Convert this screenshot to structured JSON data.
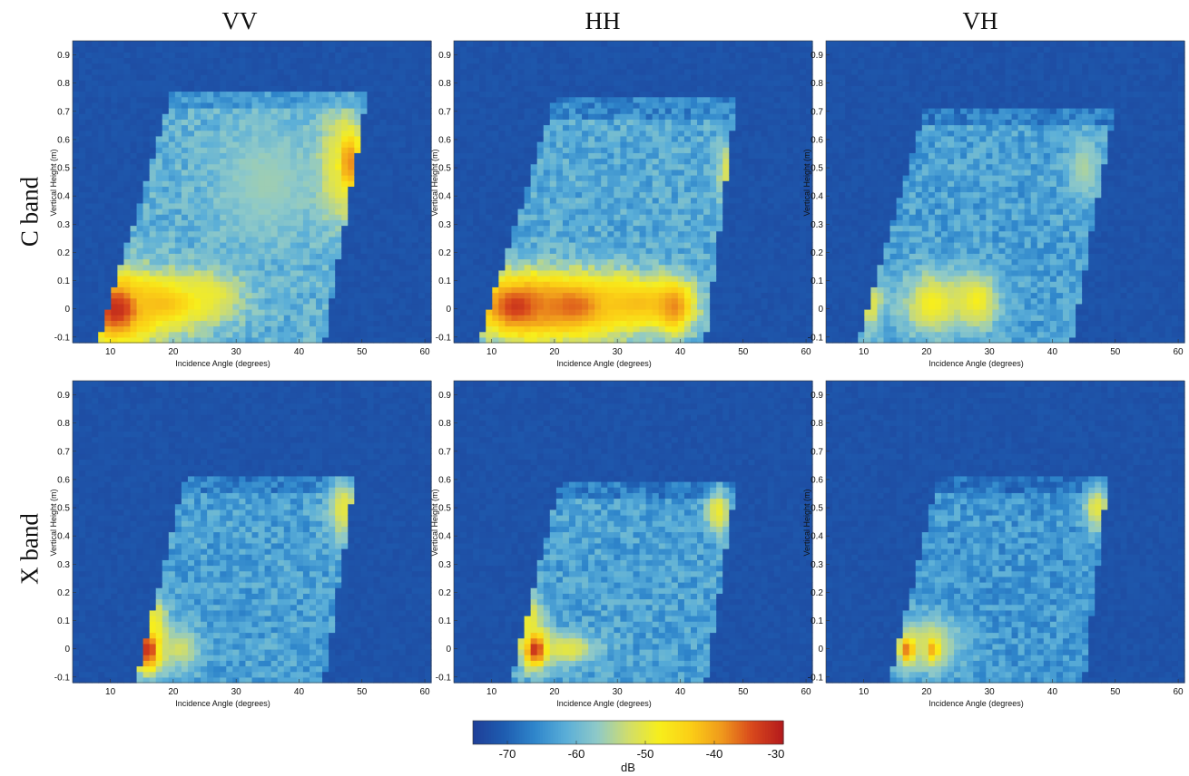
{
  "column_titles": [
    "VV",
    "HH",
    "VH"
  ],
  "row_titles": [
    "C band",
    "X band"
  ],
  "colormap": [
    "#1f3f98",
    "#1e5cb0",
    "#2f86cb",
    "#5aaed8",
    "#8ec9c8",
    "#d0dd6c",
    "#f7ee1c",
    "#fbcf16",
    "#f09a1c",
    "#d8481c",
    "#b3191c"
  ],
  "chart_data": [
    {
      "type": "heatmap",
      "band": "C band",
      "polarization": "VV",
      "xlabel": "Incidence Angle (degrees)",
      "ylabel": "Vertical Height (m)",
      "xlim": [
        4,
        61
      ],
      "ylim": [
        -0.12,
        0.95
      ],
      "xticks": [
        10,
        20,
        30,
        40,
        50,
        60
      ],
      "yticks": [
        -0.1,
        0,
        0.1,
        0.2,
        0.3,
        0.4,
        0.5,
        0.6,
        0.7,
        0.8,
        0.9
      ],
      "colorbar_units": "dB",
      "clim": [
        -75,
        -30
      ],
      "footprint": {
        "x_left_bottom": 8,
        "x_right_bottom": 44,
        "x_left_top": 20,
        "x_right_top": 51,
        "top_height": 0.78,
        "background_db": -72,
        "fill_db": -61
      },
      "hotspots": [
        {
          "x": 11,
          "y": 0.0,
          "sx": 4,
          "sy": 0.09,
          "db": -32
        },
        {
          "x": 18,
          "y": 0.02,
          "sx": 6,
          "sy": 0.07,
          "db": -42
        },
        {
          "x": 25,
          "y": 0.05,
          "sx": 4,
          "sy": 0.06,
          "db": -49
        },
        {
          "x": 48,
          "y": 0.52,
          "sx": 1.5,
          "sy": 0.1,
          "db": -38
        },
        {
          "x": 46,
          "y": 0.5,
          "sx": 2.5,
          "sy": 0.13,
          "db": -50
        },
        {
          "x": 35,
          "y": 0.45,
          "sx": 6,
          "sy": 0.15,
          "db": -56
        }
      ]
    },
    {
      "type": "heatmap",
      "band": "C band",
      "polarization": "HH",
      "xlabel": "Incidence Angle (degrees)",
      "ylabel": "Vertical Height (m)",
      "xlim": [
        4,
        61
      ],
      "ylim": [
        -0.12,
        0.95
      ],
      "xticks": [
        10,
        20,
        30,
        40,
        50,
        60
      ],
      "yticks": [
        -0.1,
        0,
        0.1,
        0.2,
        0.3,
        0.4,
        0.5,
        0.6,
        0.7,
        0.8,
        0.9
      ],
      "colorbar_units": "dB",
      "clim": [
        -75,
        -30
      ],
      "footprint": {
        "x_left_bottom": 8,
        "x_right_bottom": 44,
        "x_left_top": 20,
        "x_right_top": 49,
        "top_height": 0.75,
        "background_db": -72,
        "fill_db": -62
      },
      "hotspots": [
        {
          "x": 14,
          "y": 0.01,
          "sx": 5,
          "sy": 0.08,
          "db": -33
        },
        {
          "x": 23,
          "y": 0.01,
          "sx": 6,
          "sy": 0.08,
          "db": -36
        },
        {
          "x": 33,
          "y": 0.02,
          "sx": 6,
          "sy": 0.07,
          "db": -42
        },
        {
          "x": 39,
          "y": 0.01,
          "sx": 2,
          "sy": 0.06,
          "db": -38
        },
        {
          "x": 48,
          "y": 0.48,
          "sx": 1.5,
          "sy": 0.08,
          "db": -50
        }
      ]
    },
    {
      "type": "heatmap",
      "band": "C band",
      "polarization": "VH",
      "xlabel": "Incidence Angle (degrees)",
      "ylabel": "Vertical Height (m)",
      "xlim": [
        4,
        61
      ],
      "ylim": [
        -0.12,
        0.95
      ],
      "xticks": [
        10,
        20,
        30,
        40,
        50,
        60
      ],
      "yticks": [
        -0.1,
        0,
        0.1,
        0.2,
        0.3,
        0.4,
        0.5,
        0.6,
        0.7,
        0.8,
        0.9
      ],
      "colorbar_units": "dB",
      "clim": [
        -75,
        -30
      ],
      "footprint": {
        "x_left_bottom": 9,
        "x_right_bottom": 43,
        "x_left_top": 20,
        "x_right_top": 50,
        "top_height": 0.72,
        "background_db": -72,
        "fill_db": -63
      },
      "hotspots": [
        {
          "x": 11,
          "y": 0.02,
          "sx": 1.5,
          "sy": 0.07,
          "db": -50
        },
        {
          "x": 21,
          "y": 0.02,
          "sx": 3.5,
          "sy": 0.08,
          "db": -48
        },
        {
          "x": 28,
          "y": 0.03,
          "sx": 2.5,
          "sy": 0.07,
          "db": -48
        },
        {
          "x": 45,
          "y": 0.5,
          "sx": 2,
          "sy": 0.08,
          "db": -55
        }
      ]
    },
    {
      "type": "heatmap",
      "band": "X band",
      "polarization": "VV",
      "xlabel": "Incidence Angle (degrees)",
      "ylabel": "Vertical Height (m)",
      "xlim": [
        4,
        61
      ],
      "ylim": [
        -0.12,
        0.95
      ],
      "xticks": [
        10,
        20,
        30,
        40,
        50,
        60
      ],
      "yticks": [
        -0.1,
        0,
        0.1,
        0.2,
        0.3,
        0.4,
        0.5,
        0.6,
        0.7,
        0.8,
        0.9
      ],
      "colorbar_units": "dB",
      "clim": [
        -75,
        -30
      ],
      "footprint": {
        "x_left_bottom": 14,
        "x_right_bottom": 44,
        "x_left_top": 22,
        "x_right_top": 49,
        "top_height": 0.62,
        "background_db": -72,
        "fill_db": -63
      },
      "hotspots": [
        {
          "x": 16,
          "y": 0.0,
          "sx": 1.6,
          "sy": 0.06,
          "db": -32
        },
        {
          "x": 17,
          "y": 0.08,
          "sx": 1.5,
          "sy": 0.08,
          "db": -48
        },
        {
          "x": 21,
          "y": 0.0,
          "sx": 2.5,
          "sy": 0.05,
          "db": -52
        },
        {
          "x": 47,
          "y": 0.5,
          "sx": 1.8,
          "sy": 0.08,
          "db": -50
        }
      ]
    },
    {
      "type": "heatmap",
      "band": "X band",
      "polarization": "HH",
      "xlabel": "Incidence Angle (degrees)",
      "ylabel": "Vertical Height (m)",
      "xlim": [
        4,
        61
      ],
      "ylim": [
        -0.12,
        0.95
      ],
      "xticks": [
        10,
        20,
        30,
        40,
        50,
        60
      ],
      "yticks": [
        -0.1,
        0,
        0.1,
        0.2,
        0.3,
        0.4,
        0.5,
        0.6,
        0.7,
        0.8,
        0.9
      ],
      "colorbar_units": "dB",
      "clim": [
        -75,
        -30
      ],
      "footprint": {
        "x_left_bottom": 13,
        "x_right_bottom": 44,
        "x_left_top": 21,
        "x_right_top": 49,
        "top_height": 0.6,
        "background_db": -72,
        "fill_db": -63
      },
      "hotspots": [
        {
          "x": 17,
          "y": 0.0,
          "sx": 1.5,
          "sy": 0.05,
          "db": -32
        },
        {
          "x": 16,
          "y": 0.1,
          "sx": 1.5,
          "sy": 0.08,
          "db": -49
        },
        {
          "x": 22,
          "y": 0.0,
          "sx": 3.5,
          "sy": 0.04,
          "db": -50
        },
        {
          "x": 46,
          "y": 0.49,
          "sx": 1.3,
          "sy": 0.06,
          "db": -49
        }
      ]
    },
    {
      "type": "heatmap",
      "band": "X band",
      "polarization": "VH",
      "xlabel": "Incidence Angle (degrees)",
      "ylabel": "Vertical Height (m)",
      "xlim": [
        4,
        61
      ],
      "ylim": [
        -0.12,
        0.95
      ],
      "xticks": [
        10,
        20,
        30,
        40,
        50,
        60
      ],
      "yticks": [
        -0.1,
        0,
        0.1,
        0.2,
        0.3,
        0.4,
        0.5,
        0.6,
        0.7,
        0.8,
        0.9
      ],
      "colorbar_units": "dB",
      "clim": [
        -75,
        -30
      ],
      "footprint": {
        "x_left_bottom": 14,
        "x_right_bottom": 45,
        "x_left_top": 22,
        "x_right_top": 49,
        "top_height": 0.62,
        "background_db": -72,
        "fill_db": -64
      },
      "hotspots": [
        {
          "x": 17,
          "y": 0.0,
          "sx": 1.0,
          "sy": 0.04,
          "db": -36
        },
        {
          "x": 21,
          "y": 0.0,
          "sx": 1.0,
          "sy": 0.04,
          "db": -40
        },
        {
          "x": 20,
          "y": 0.02,
          "sx": 4,
          "sy": 0.07,
          "db": -52
        },
        {
          "x": 47,
          "y": 0.5,
          "sx": 1.5,
          "sy": 0.06,
          "db": -50
        }
      ]
    }
  ],
  "colorbar": {
    "label": "dB",
    "min": -75,
    "max": -30,
    "ticks": [
      -70,
      -60,
      -50,
      -40,
      -30
    ],
    "tick_labels": [
      "-70",
      "-60",
      "-50",
      "-40",
      "-30"
    ]
  }
}
